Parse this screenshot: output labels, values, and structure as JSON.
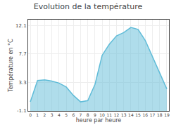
{
  "chart_data": {
    "type": "area",
    "title": "Evolution de la température",
    "xlabel": "heure par heure",
    "ylabel": "Température en °C",
    "x": [
      0,
      1,
      2,
      3,
      4,
      5,
      6,
      7,
      8,
      9,
      10,
      11,
      12,
      13,
      14,
      15,
      16,
      17,
      18,
      19
    ],
    "values": [
      0.3,
      3.6,
      3.7,
      3.5,
      3.2,
      2.6,
      1.3,
      0.3,
      0.5,
      3.0,
      7.5,
      9.2,
      10.5,
      11.0,
      11.8,
      11.5,
      9.8,
      7.2,
      4.8,
      2.3
    ],
    "color": "#60bcd8",
    "xlim": [
      -0.3,
      19.3
    ],
    "xticks": [
      0,
      1,
      2,
      3,
      4,
      5,
      6,
      7,
      8,
      9,
      10,
      11,
      12,
      13,
      14,
      15,
      16,
      17,
      18,
      19
    ],
    "ylim": [
      -1.1,
      13.0
    ],
    "yticks": [
      -1.1,
      3.3,
      7.7,
      12.1
    ],
    "grid": true
  }
}
